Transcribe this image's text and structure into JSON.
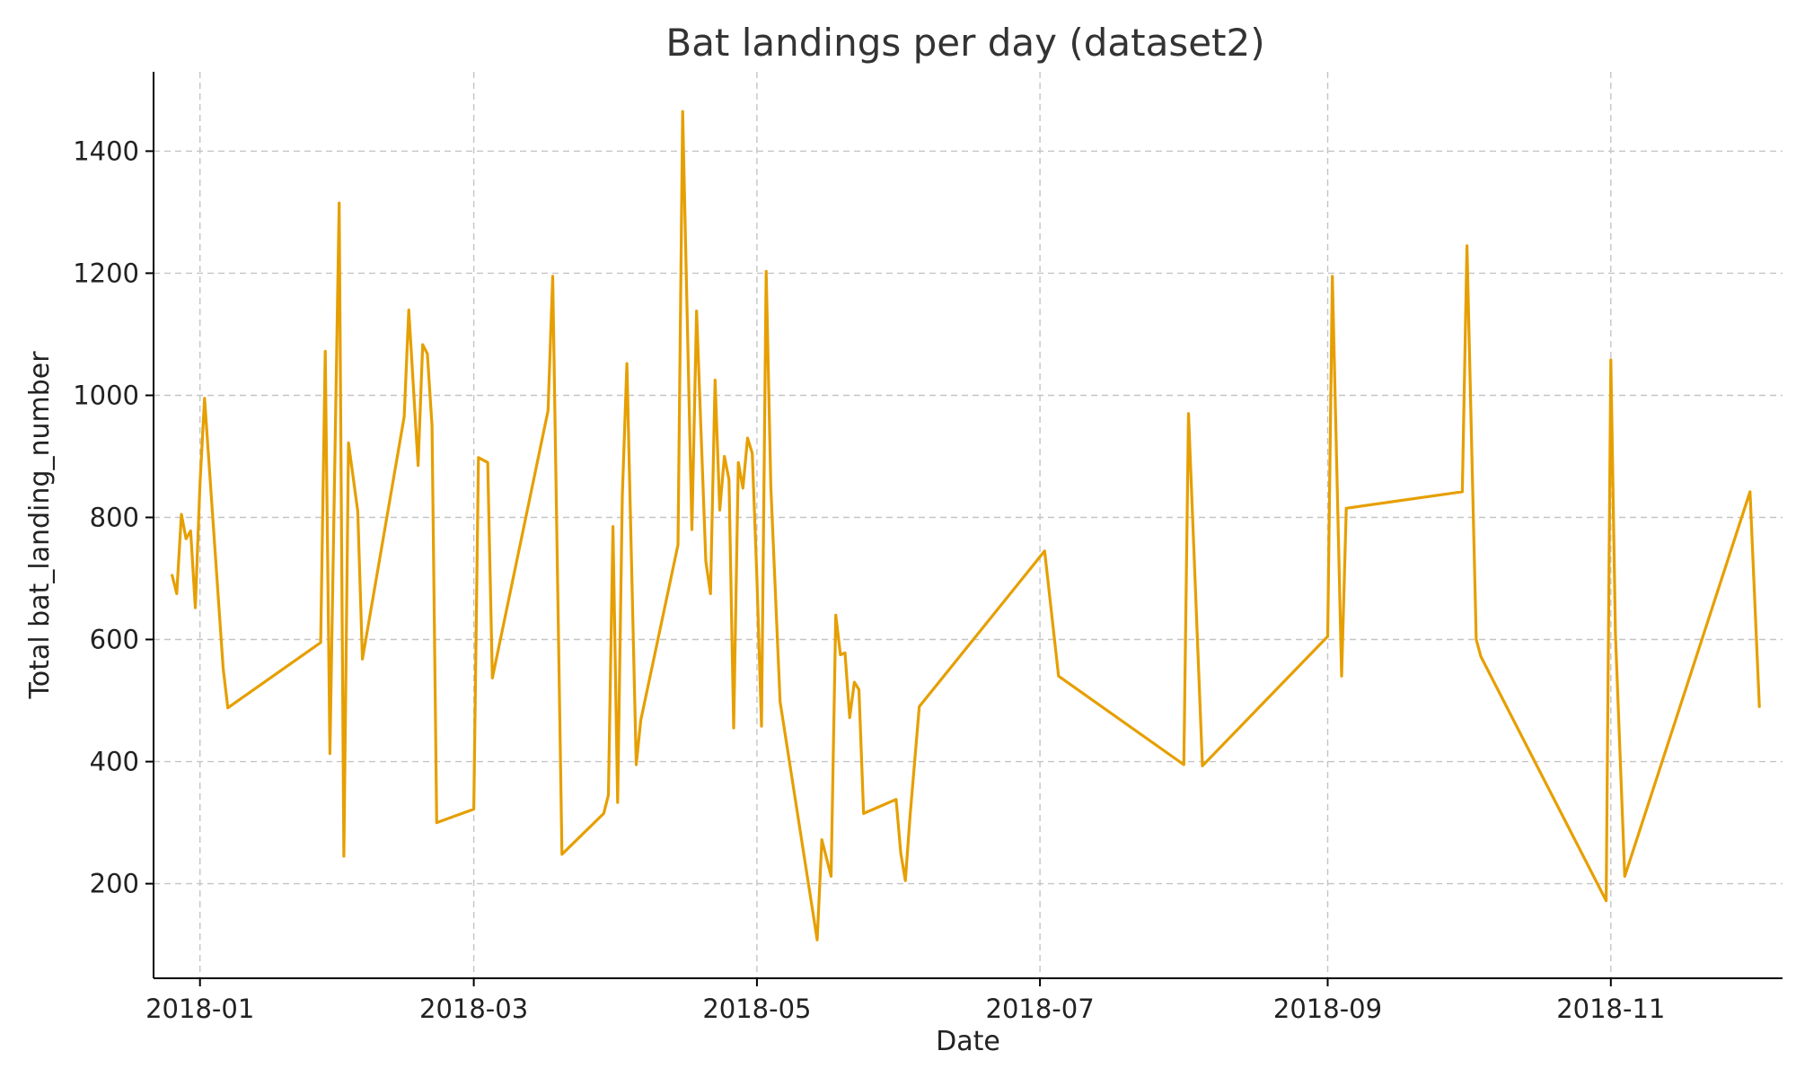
{
  "chart_data": {
    "type": "line",
    "title": "Bat landings per day (dataset2)",
    "xlabel": "Date",
    "ylabel": "Total bat_landing_number",
    "x_range": [
      "2017-12-22",
      "2018-12-08"
    ],
    "ylim": [
      45,
      1530
    ],
    "x_ticks": [
      "2018-01",
      "2018-03",
      "2018-05",
      "2018-07",
      "2018-09",
      "2018-11"
    ],
    "x_tick_dates": [
      "2018-01-01",
      "2018-03-01",
      "2018-05-01",
      "2018-07-01",
      "2018-09-01",
      "2018-11-01"
    ],
    "y_ticks": [
      200,
      400,
      600,
      800,
      1000,
      1200,
      1400
    ],
    "grid": true,
    "legend": "none",
    "color": "#e69f00",
    "series": [
      {
        "points": [
          [
            "2017-12-26",
            705
          ],
          [
            "2017-12-27",
            675
          ],
          [
            "2017-12-28",
            805
          ],
          [
            "2017-12-29",
            765
          ],
          [
            "2017-12-30",
            778
          ],
          [
            "2017-12-31",
            652
          ],
          [
            "2018-01-01",
            855
          ],
          [
            "2018-01-02",
            995
          ],
          [
            "2018-01-06",
            553
          ],
          [
            "2018-01-07",
            488
          ],
          [
            "2018-01-27",
            595
          ],
          [
            "2018-01-28",
            1072
          ],
          [
            "2018-01-29",
            413
          ],
          [
            "2018-01-31",
            1315
          ],
          [
            "2018-02-01",
            245
          ],
          [
            "2018-02-02",
            922
          ],
          [
            "2018-02-04",
            810
          ],
          [
            "2018-02-05",
            568
          ],
          [
            "2018-02-14",
            965
          ],
          [
            "2018-02-15",
            1140
          ],
          [
            "2018-02-17",
            885
          ],
          [
            "2018-02-18",
            1083
          ],
          [
            "2018-02-19",
            1068
          ],
          [
            "2018-02-20",
            950
          ],
          [
            "2018-02-21",
            300
          ],
          [
            "2018-03-01",
            322
          ],
          [
            "2018-03-02",
            898
          ],
          [
            "2018-03-04",
            890
          ],
          [
            "2018-03-05",
            537
          ],
          [
            "2018-03-17",
            975
          ],
          [
            "2018-03-18",
            1195
          ],
          [
            "2018-03-20",
            248
          ],
          [
            "2018-03-29",
            315
          ],
          [
            "2018-03-30",
            345
          ],
          [
            "2018-03-31",
            785
          ],
          [
            "2018-04-01",
            333
          ],
          [
            "2018-04-02",
            835
          ],
          [
            "2018-04-03",
            1052
          ],
          [
            "2018-04-05",
            395
          ],
          [
            "2018-04-06",
            468
          ],
          [
            "2018-04-14",
            755
          ],
          [
            "2018-04-15",
            1465
          ],
          [
            "2018-04-17",
            780
          ],
          [
            "2018-04-18",
            1138
          ],
          [
            "2018-04-20",
            728
          ],
          [
            "2018-04-21",
            675
          ],
          [
            "2018-04-22",
            1025
          ],
          [
            "2018-04-23",
            812
          ],
          [
            "2018-04-24",
            900
          ],
          [
            "2018-04-25",
            862
          ],
          [
            "2018-04-26",
            455
          ],
          [
            "2018-04-27",
            890
          ],
          [
            "2018-04-28",
            848
          ],
          [
            "2018-04-29",
            930
          ],
          [
            "2018-04-30",
            905
          ],
          [
            "2018-05-01",
            700
          ],
          [
            "2018-05-02",
            458
          ],
          [
            "2018-05-03",
            1203
          ],
          [
            "2018-05-04",
            850
          ],
          [
            "2018-05-06",
            498
          ],
          [
            "2018-05-14",
            108
          ],
          [
            "2018-05-15",
            272
          ],
          [
            "2018-05-17",
            212
          ],
          [
            "2018-05-18",
            640
          ],
          [
            "2018-05-19",
            575
          ],
          [
            "2018-05-20",
            578
          ],
          [
            "2018-05-21",
            472
          ],
          [
            "2018-05-22",
            530
          ],
          [
            "2018-05-23",
            518
          ],
          [
            "2018-05-24",
            315
          ],
          [
            "2018-05-31",
            338
          ],
          [
            "2018-06-01",
            250
          ],
          [
            "2018-06-02",
            205
          ],
          [
            "2018-06-03",
            310
          ],
          [
            "2018-06-05",
            490
          ],
          [
            "2018-07-02",
            745
          ],
          [
            "2018-07-05",
            540
          ],
          [
            "2018-08-01",
            395
          ],
          [
            "2018-08-02",
            970
          ],
          [
            "2018-08-05",
            393
          ],
          [
            "2018-09-01",
            605
          ],
          [
            "2018-09-02",
            1195
          ],
          [
            "2018-09-04",
            540
          ],
          [
            "2018-09-05",
            815
          ],
          [
            "2018-09-30",
            842
          ],
          [
            "2018-10-01",
            1245
          ],
          [
            "2018-10-03",
            600
          ],
          [
            "2018-10-04",
            572
          ],
          [
            "2018-10-31",
            172
          ],
          [
            "2018-11-01",
            1058
          ],
          [
            "2018-11-02",
            610
          ],
          [
            "2018-11-04",
            212
          ],
          [
            "2018-12-01",
            842
          ],
          [
            "2018-12-03",
            490
          ]
        ]
      }
    ]
  }
}
